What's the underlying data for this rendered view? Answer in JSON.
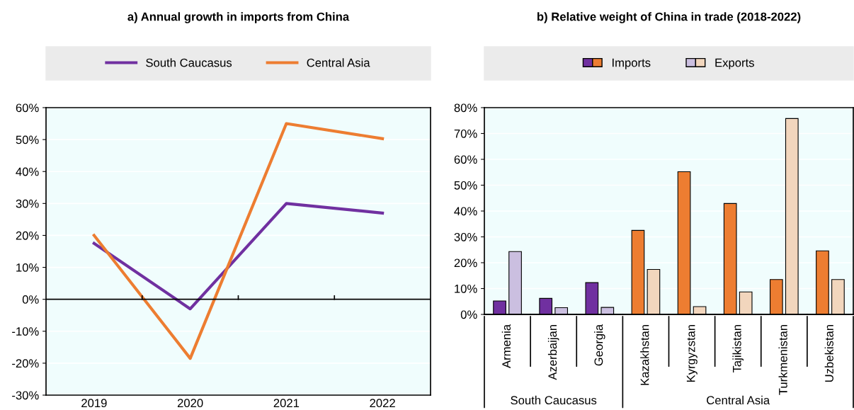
{
  "chart_data": [
    {
      "type": "line",
      "title": "a) Annual growth in imports from China",
      "categories": [
        "2019",
        "2020",
        "2021",
        "2022"
      ],
      "series": [
        {
          "name": "South Caucasus",
          "color": "#7030a0",
          "values": [
            17.5,
            -3,
            30,
            27
          ]
        },
        {
          "name": "Central Asia",
          "color": "#ed7d31",
          "values": [
            20,
            -18.5,
            55,
            50.3
          ]
        }
      ],
      "ylim": [
        -30,
        60
      ],
      "yticks": [
        {
          "value": -30,
          "label": "-30%"
        },
        {
          "value": -20,
          "label": "-20%"
        },
        {
          "value": -10,
          "label": "-10%"
        },
        {
          "value": 0,
          "label": "0%"
        },
        {
          "value": 10,
          "label": "10%"
        },
        {
          "value": 20,
          "label": "20%"
        },
        {
          "value": 30,
          "label": "30%"
        },
        {
          "value": 40,
          "label": "40%"
        },
        {
          "value": 50,
          "label": "50%"
        },
        {
          "value": 60,
          "label": "60%"
        }
      ],
      "grid": "y",
      "legend": "top",
      "marker": "none",
      "line_style": "solid"
    },
    {
      "type": "bar",
      "title": "b) Relative weight of China in trade (2018-2022)",
      "categories": [
        "Armenia",
        "Azerbaijan",
        "Georgia",
        "Kazakhstan",
        "Kyrgyzstan",
        "Tajikistan",
        "Turkmenistan",
        "Uzbekistan"
      ],
      "series": [
        {
          "name": "Imports",
          "colors": [
            "#7030a0",
            "#7030a0",
            "#7030a0",
            "#ed7d31",
            "#ed7d31",
            "#ed7d31",
            "#ed7d31",
            "#ed7d31"
          ],
          "values": [
            5.2,
            6.2,
            12.3,
            32.5,
            55.2,
            42.9,
            13.5,
            24.6
          ]
        },
        {
          "name": "Exports",
          "colors": [
            "#cbbfe0",
            "#cbbfe0",
            "#cbbfe0",
            "#f2d6bd",
            "#f2d6bd",
            "#f2d6bd",
            "#f2d6bd",
            "#f2d6bd"
          ],
          "values": [
            24.3,
            2.6,
            2.7,
            17.4,
            3.0,
            8.7,
            75.8,
            13.5
          ]
        }
      ],
      "annotations": [
        "South Caucasus",
        "Central Asia"
      ],
      "ylim": [
        0,
        80
      ],
      "yticks": [
        {
          "value": 0,
          "label": "0%"
        },
        {
          "value": 10,
          "label": "10%"
        },
        {
          "value": 20,
          "label": "20%"
        },
        {
          "value": 30,
          "label": "30%"
        },
        {
          "value": 40,
          "label": "40%"
        },
        {
          "value": 50,
          "label": "50%"
        },
        {
          "value": 60,
          "label": "60%"
        },
        {
          "value": 70,
          "label": "70%"
        },
        {
          "value": 80,
          "label": "80%"
        }
      ],
      "grid": "y",
      "legend": "top"
    }
  ]
}
